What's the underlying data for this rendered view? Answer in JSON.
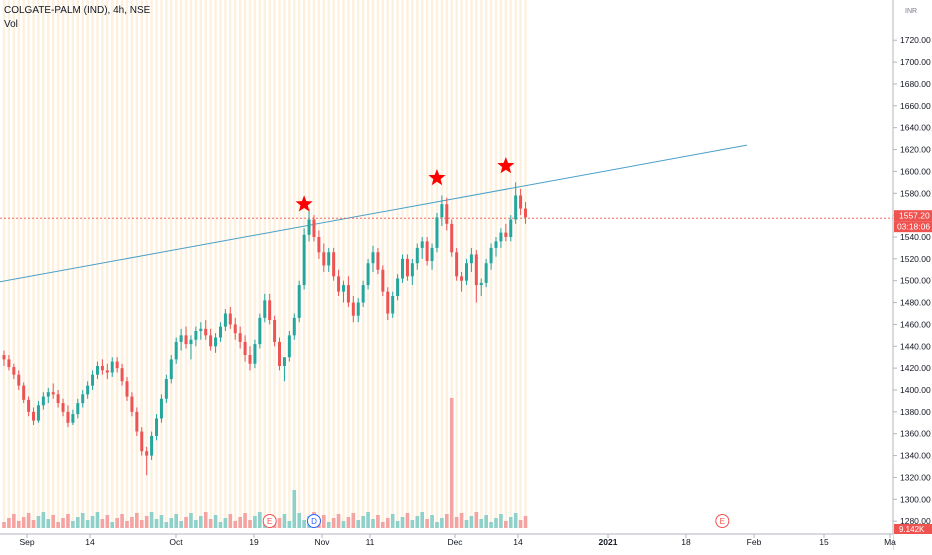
{
  "legend": {
    "symbol": "COLGATE-PALM (IND), 4h, NSE",
    "volume_label": "Vol"
  },
  "chart_data": {
    "type": "candlestick",
    "title": "COLGATE-PALM (IND), 4h, NSE",
    "currency": "INR",
    "ylim": [
      1270,
      1740
    ],
    "y_ticks": [
      1280,
      1300,
      1320,
      1340,
      1360,
      1380,
      1400,
      1420,
      1440,
      1460,
      1480,
      1500,
      1520,
      1540,
      1560,
      1580,
      1600,
      1620,
      1640,
      1660,
      1680,
      1700,
      1720
    ],
    "x_tick_labels": [
      "Sep",
      "14",
      "Oct",
      "19",
      "Nov",
      "11",
      "Dec",
      "14",
      "2021",
      "18",
      "Feb",
      "15",
      "Ma"
    ],
    "last_price": {
      "value": 1557.2,
      "label": "1557.20"
    },
    "countdown_label": "03:18:06",
    "volume_label": "9.142K",
    "bars": [
      [
        1432,
        1436,
        1422,
        1428
      ],
      [
        1428,
        1432,
        1418,
        1421
      ],
      [
        1421,
        1424,
        1410,
        1414
      ],
      [
        1414,
        1418,
        1400,
        1404
      ],
      [
        1404,
        1407,
        1388,
        1391
      ],
      [
        1391,
        1394,
        1376,
        1380
      ],
      [
        1380,
        1384,
        1368,
        1372
      ],
      [
        1372,
        1390,
        1370,
        1386
      ],
      [
        1386,
        1398,
        1382,
        1394
      ],
      [
        1394,
        1402,
        1388,
        1398
      ],
      [
        1398,
        1406,
        1392,
        1396
      ],
      [
        1396,
        1400,
        1384,
        1388
      ],
      [
        1388,
        1392,
        1376,
        1380
      ],
      [
        1380,
        1386,
        1366,
        1370
      ],
      [
        1370,
        1382,
        1368,
        1378
      ],
      [
        1378,
        1392,
        1374,
        1388
      ],
      [
        1388,
        1400,
        1384,
        1396
      ],
      [
        1396,
        1408,
        1392,
        1404
      ],
      [
        1404,
        1418,
        1400,
        1414
      ],
      [
        1414,
        1426,
        1410,
        1422
      ],
      [
        1422,
        1428,
        1414,
        1418
      ],
      [
        1418,
        1424,
        1410,
        1416
      ],
      [
        1416,
        1430,
        1412,
        1426
      ],
      [
        1426,
        1430,
        1416,
        1420
      ],
      [
        1420,
        1424,
        1404,
        1408
      ],
      [
        1408,
        1412,
        1390,
        1394
      ],
      [
        1394,
        1398,
        1376,
        1380
      ],
      [
        1380,
        1384,
        1358,
        1362
      ],
      [
        1362,
        1366,
        1340,
        1344
      ],
      [
        1344,
        1348,
        1322,
        1340
      ],
      [
        1340,
        1362,
        1336,
        1358
      ],
      [
        1358,
        1378,
        1354,
        1374
      ],
      [
        1374,
        1396,
        1370,
        1392
      ],
      [
        1392,
        1414,
        1388,
        1410
      ],
      [
        1410,
        1432,
        1406,
        1428
      ],
      [
        1428,
        1448,
        1424,
        1444
      ],
      [
        1444,
        1456,
        1436,
        1450
      ],
      [
        1450,
        1458,
        1438,
        1442
      ],
      [
        1442,
        1450,
        1428,
        1446
      ],
      [
        1446,
        1458,
        1440,
        1454
      ],
      [
        1454,
        1462,
        1446,
        1456
      ],
      [
        1456,
        1464,
        1446,
        1450
      ],
      [
        1450,
        1456,
        1436,
        1440
      ],
      [
        1440,
        1452,
        1434,
        1448
      ],
      [
        1448,
        1462,
        1444,
        1458
      ],
      [
        1458,
        1474,
        1454,
        1470
      ],
      [
        1470,
        1476,
        1456,
        1460
      ],
      [
        1460,
        1466,
        1446,
        1452
      ],
      [
        1452,
        1458,
        1438,
        1444
      ],
      [
        1444,
        1450,
        1426,
        1432
      ],
      [
        1432,
        1440,
        1418,
        1424
      ],
      [
        1424,
        1446,
        1420,
        1442
      ],
      [
        1442,
        1470,
        1438,
        1466
      ],
      [
        1466,
        1488,
        1462,
        1482
      ],
      [
        1482,
        1488,
        1460,
        1464
      ],
      [
        1464,
        1468,
        1440,
        1444
      ],
      [
        1444,
        1448,
        1418,
        1422
      ],
      [
        1422,
        1426,
        1408,
        1430
      ],
      [
        1430,
        1454,
        1426,
        1450
      ],
      [
        1450,
        1470,
        1446,
        1466
      ],
      [
        1466,
        1500,
        1462,
        1496
      ],
      [
        1496,
        1548,
        1492,
        1542
      ],
      [
        1542,
        1566,
        1536,
        1556
      ],
      [
        1556,
        1560,
        1536,
        1540
      ],
      [
        1540,
        1546,
        1520,
        1526
      ],
      [
        1526,
        1534,
        1508,
        1514
      ],
      [
        1514,
        1530,
        1508,
        1526
      ],
      [
        1526,
        1530,
        1500,
        1504
      ],
      [
        1504,
        1510,
        1486,
        1490
      ],
      [
        1490,
        1500,
        1480,
        1496
      ],
      [
        1496,
        1504,
        1476,
        1480
      ],
      [
        1480,
        1486,
        1462,
        1468
      ],
      [
        1468,
        1484,
        1462,
        1480
      ],
      [
        1480,
        1500,
        1476,
        1496
      ],
      [
        1496,
        1520,
        1492,
        1516
      ],
      [
        1516,
        1532,
        1508,
        1526
      ],
      [
        1526,
        1530,
        1506,
        1510
      ],
      [
        1510,
        1514,
        1486,
        1490
      ],
      [
        1490,
        1494,
        1464,
        1470
      ],
      [
        1470,
        1490,
        1466,
        1486
      ],
      [
        1486,
        1506,
        1482,
        1502
      ],
      [
        1502,
        1524,
        1498,
        1520
      ],
      [
        1520,
        1524,
        1500,
        1504
      ],
      [
        1504,
        1520,
        1496,
        1516
      ],
      [
        1516,
        1534,
        1510,
        1530
      ],
      [
        1530,
        1540,
        1520,
        1536
      ],
      [
        1536,
        1540,
        1514,
        1518
      ],
      [
        1518,
        1534,
        1510,
        1530
      ],
      [
        1530,
        1562,
        1526,
        1558
      ],
      [
        1558,
        1578,
        1550,
        1570
      ],
      [
        1570,
        1576,
        1546,
        1552
      ],
      [
        1552,
        1556,
        1522,
        1526
      ],
      [
        1526,
        1530,
        1500,
        1504
      ],
      [
        1504,
        1508,
        1490,
        1500
      ],
      [
        1500,
        1520,
        1496,
        1516
      ],
      [
        1516,
        1530,
        1508,
        1524
      ],
      [
        1524,
        1528,
        1480,
        1496
      ],
      [
        1496,
        1502,
        1486,
        1498
      ],
      [
        1498,
        1520,
        1494,
        1516
      ],
      [
        1516,
        1534,
        1510,
        1530
      ],
      [
        1530,
        1540,
        1522,
        1536
      ],
      [
        1536,
        1548,
        1530,
        1544
      ],
      [
        1544,
        1552,
        1536,
        1540
      ],
      [
        1540,
        1560,
        1536,
        1556
      ],
      [
        1556,
        1590,
        1552,
        1578
      ],
      [
        1578,
        1584,
        1560,
        1566
      ],
      [
        1566,
        1572,
        1552,
        1558
      ]
    ],
    "trendline": {
      "start": {
        "bar": 0,
        "price": 1499
      },
      "end": {
        "bar": 151,
        "price": 1624
      }
    },
    "star_markers": [
      {
        "bar": 61,
        "price": 1570
      },
      {
        "bar": 88,
        "price": 1594
      },
      {
        "bar": 102,
        "price": 1605
      }
    ],
    "event_markers": [
      {
        "label": "E",
        "bar": 54
      },
      {
        "label": "D",
        "bar": 63
      },
      {
        "label": "E",
        "bar": 146
      }
    ]
  },
  "colors": {
    "up": "#26a69a",
    "down": "#ef5350",
    "up_volume": "#8fd1c8",
    "down_volume": "#f4a3a1",
    "trendline": "#4a9fc8",
    "star": "#ff0000",
    "price_line": "#ef5350",
    "session_stripe": "#fdf1de",
    "axis_text": "#131722"
  }
}
